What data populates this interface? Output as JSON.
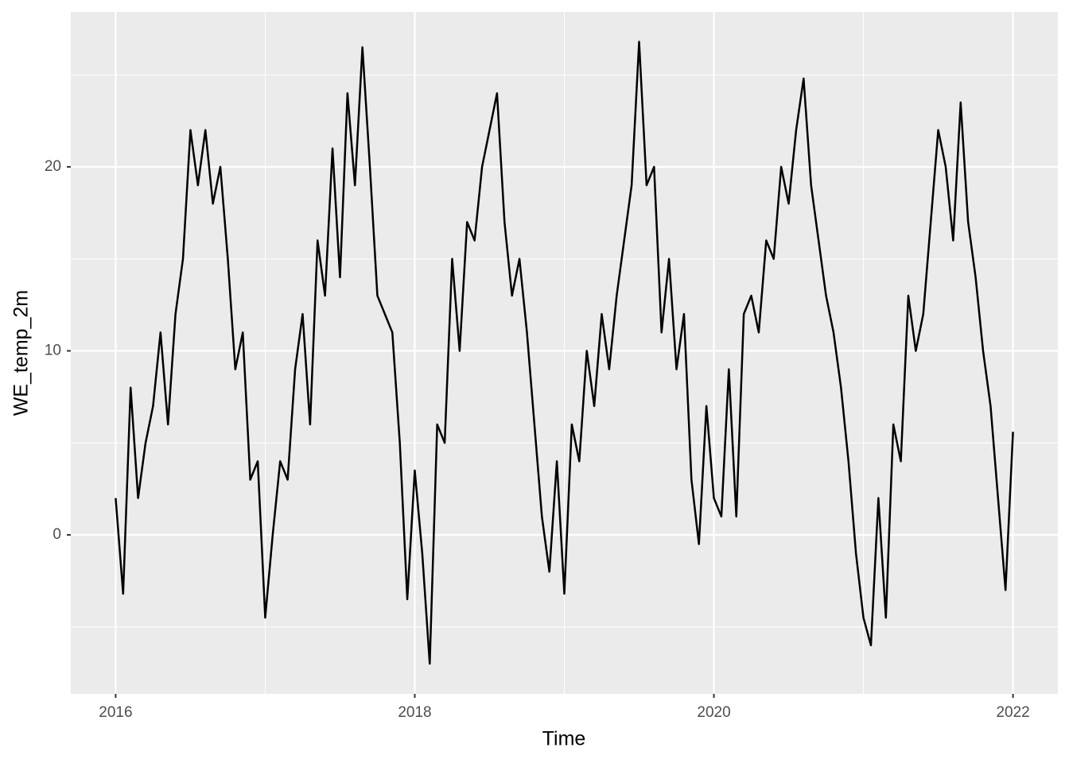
{
  "chart_data": {
    "type": "line",
    "x_label": "Time",
    "y_label": "WE_temp_2m",
    "x": [
      2016.0,
      2016.05,
      2016.1,
      2016.15,
      2016.2,
      2016.25,
      2016.3,
      2016.35,
      2016.4,
      2016.45,
      2016.5,
      2016.55,
      2016.6,
      2016.65,
      2016.7,
      2016.75,
      2016.8,
      2016.85,
      2016.9,
      2016.95,
      2017.0,
      2017.05,
      2017.1,
      2017.15,
      2017.2,
      2017.25,
      2017.3,
      2017.35,
      2017.4,
      2017.45,
      2017.5,
      2017.55,
      2017.6,
      2017.65,
      2017.7,
      2017.75,
      2017.8,
      2017.85,
      2017.9,
      2017.95,
      2018.0,
      2018.05,
      2018.1,
      2018.15,
      2018.2,
      2018.25,
      2018.3,
      2018.35,
      2018.4,
      2018.45,
      2018.5,
      2018.55,
      2018.6,
      2018.65,
      2018.7,
      2018.75,
      2018.8,
      2018.85,
      2018.9,
      2018.95,
      2019.0,
      2019.05,
      2019.1,
      2019.15,
      2019.2,
      2019.25,
      2019.3,
      2019.35,
      2019.4,
      2019.45,
      2019.5,
      2019.55,
      2019.6,
      2019.65,
      2019.7,
      2019.75,
      2019.8,
      2019.85,
      2019.9,
      2019.95,
      2020.0,
      2020.05,
      2020.1,
      2020.15,
      2020.2,
      2020.25,
      2020.3,
      2020.35,
      2020.4,
      2020.45,
      2020.5,
      2020.55,
      2020.6,
      2020.65,
      2020.7,
      2020.75,
      2020.8,
      2020.85,
      2020.9,
      2020.95,
      2021.0,
      2021.05,
      2021.1,
      2021.15,
      2021.2,
      2021.25,
      2021.3,
      2021.35,
      2021.4,
      2021.45,
      2021.5,
      2021.55,
      2021.6,
      2021.65,
      2021.7,
      2021.75,
      2021.8,
      2021.85,
      2021.9,
      2021.95,
      2022.0
    ],
    "series": [
      {
        "name": "WE_temp_2m",
        "color": "#000000",
        "values": [
          2,
          -3.2,
          8,
          2,
          5,
          7,
          11,
          6,
          12,
          15,
          22,
          19,
          22,
          18,
          20,
          15,
          9,
          11,
          3,
          4,
          -4.5,
          0,
          4,
          3,
          9,
          12,
          6,
          16,
          13,
          21,
          14,
          24,
          19,
          26.5,
          20,
          13,
          12,
          11,
          5,
          -3.5,
          3.5,
          -1,
          -7,
          6,
          5,
          15,
          10,
          17,
          16,
          20,
          22,
          24,
          17,
          13,
          15,
          11,
          6,
          1,
          -2,
          4,
          -3.2,
          6,
          4,
          10,
          7,
          12,
          9,
          13,
          16,
          19,
          26.8,
          19,
          20,
          11,
          15,
          9,
          12,
          3,
          -0.5,
          7,
          2,
          1,
          9,
          1,
          12,
          13,
          11,
          16,
          15,
          20,
          18,
          22,
          24.8,
          19,
          16,
          13,
          11,
          8,
          4,
          -1,
          -4.5,
          -6,
          2,
          -4.5,
          6,
          4,
          13,
          10,
          12,
          17,
          22,
          20,
          16,
          23.5,
          17,
          14,
          10,
          7,
          2,
          -3,
          5.6
        ]
      }
    ],
    "xlim": [
      2015.7,
      2022.3
    ],
    "xticks": [
      2016,
      2018,
      2020,
      2022
    ],
    "xminor": [
      2017,
      2019,
      2021
    ],
    "ylim": [
      -8.64,
      28.42
    ],
    "yticks": [
      0,
      10,
      20
    ],
    "yminor": [
      -5,
      5,
      15,
      25
    ],
    "grid": true
  }
}
